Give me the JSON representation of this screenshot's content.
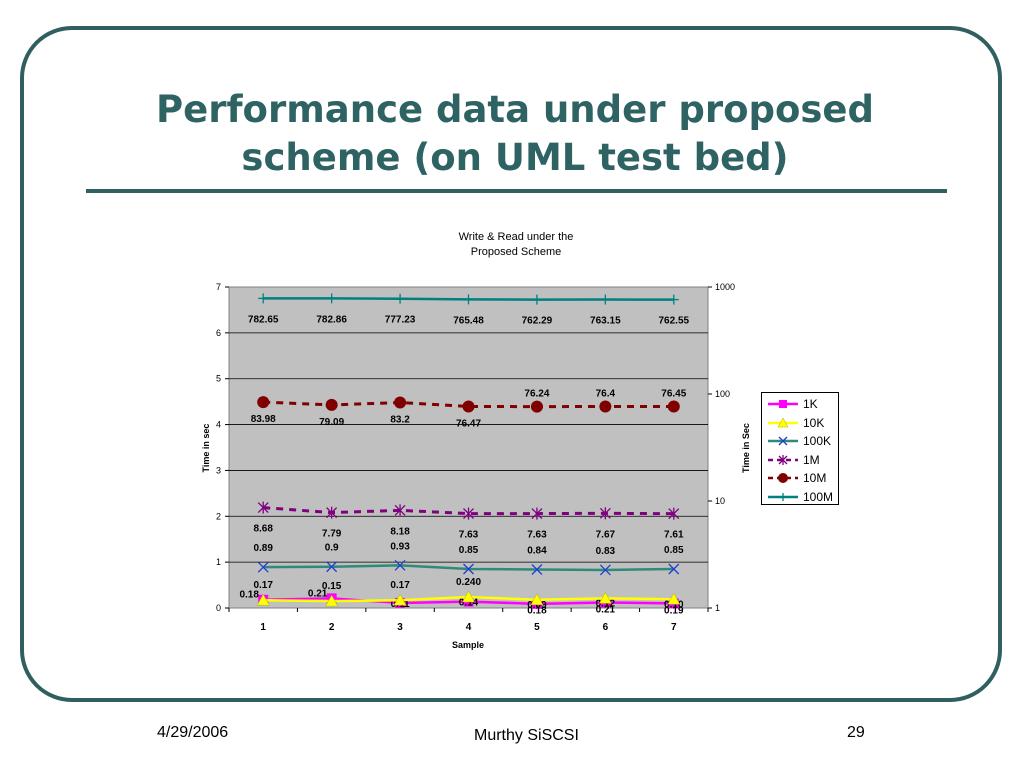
{
  "slide": {
    "title_line1": "Performance data under proposed",
    "title_line2": "scheme (on UML test bed)",
    "footer_date": "4/29/2006",
    "footer_author": "Murthy SiSCSI",
    "footer_page": "29",
    "accent_color": "#2f6363"
  },
  "chart_data": {
    "type": "line",
    "title_line1": "Write & Read under the",
    "title_line2": "Proposed Scheme",
    "xlabel": "Sample",
    "ylabel_left": "Time in sec",
    "ylabel_right": "Time in Sec",
    "categories": [
      "1",
      "2",
      "3",
      "4",
      "5",
      "6",
      "7"
    ],
    "y_left": {
      "range": [
        0,
        7
      ],
      "ticks": [
        "0",
        "1",
        "2",
        "3",
        "4",
        "5",
        "6",
        "7"
      ]
    },
    "y_right": {
      "scale": "log",
      "range": [
        1,
        1000
      ],
      "ticks": [
        "1",
        "10",
        "100",
        "1000"
      ]
    },
    "grid": true,
    "plot_background": "#c0c0c0",
    "legend_position": "right",
    "series": [
      {
        "name": "1K",
        "axis": "left",
        "color": "#ff00ff",
        "marker": "square",
        "dash": "solid",
        "values": [
          0.18,
          0.21,
          0.11,
          0.14,
          0.09,
          0.12,
          0.1
        ],
        "labels": [
          "0.18",
          "0.21",
          "0.11",
          "0.14",
          "0.09",
          "0.12",
          "0.10"
        ]
      },
      {
        "name": "10K",
        "axis": "left",
        "color": "#ffff00",
        "marker": "triangle",
        "dash": "solid",
        "values": [
          0.17,
          0.15,
          0.17,
          0.24,
          0.18,
          0.21,
          0.19
        ],
        "labels": [
          "0.17",
          "0.15",
          "0.17",
          "0.240",
          "0.18",
          "0.21",
          "0.19"
        ]
      },
      {
        "name": "100K",
        "axis": "left",
        "color": "#2e8b78",
        "marker": "x",
        "dash": "solid",
        "marker_color": "#1f3fd0",
        "values": [
          0.89,
          0.9,
          0.93,
          0.85,
          0.84,
          0.83,
          0.85
        ],
        "labels": [
          "0.89",
          "0.9",
          "0.93",
          "0.85",
          "0.84",
          "0.83",
          "0.85"
        ]
      },
      {
        "name": "1M",
        "axis": "right",
        "color": "#800080",
        "marker": "star",
        "dash": "dashed",
        "values": [
          8.68,
          7.79,
          8.18,
          7.63,
          7.63,
          7.67,
          7.61
        ],
        "labels": [
          "8.68",
          "7.79",
          "8.18",
          "7.63",
          "7.63",
          "7.67",
          "7.61"
        ]
      },
      {
        "name": "10M",
        "axis": "right",
        "color": "#800000",
        "marker": "circle",
        "dash": "dashed",
        "values": [
          83.98,
          79.09,
          83.2,
          76.47,
          76.24,
          76.4,
          76.45
        ],
        "labels": [
          "83.98",
          "79.09",
          "83.2",
          "76.47",
          "76.24",
          "76.4",
          "76.45"
        ]
      },
      {
        "name": "100M",
        "axis": "right",
        "color": "#008080",
        "marker": "plus",
        "dash": "solid",
        "values": [
          782.65,
          782.86,
          777.23,
          765.48,
          762.29,
          763.15,
          762.55
        ],
        "labels": [
          "782.65",
          "782.86",
          "777.23",
          "765.48",
          "762.29",
          "763.15",
          "762.55"
        ]
      }
    ]
  }
}
